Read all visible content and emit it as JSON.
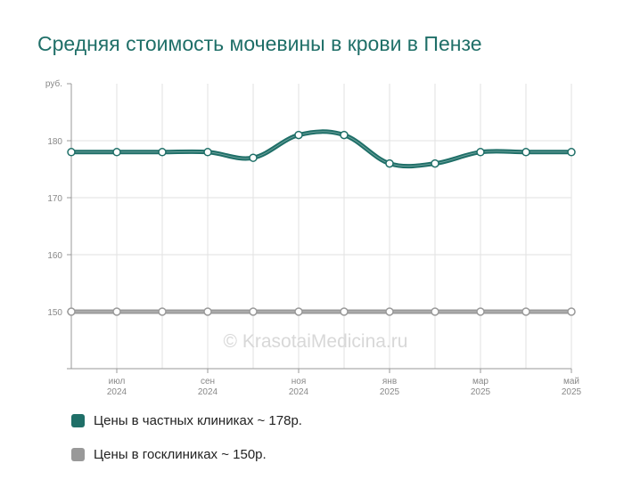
{
  "chart": {
    "title": "Средняя стоимость мочевины в крови в Пензе"
  },
  "chart_data": {
    "type": "line",
    "title": "Средняя стоимость мочевины в крови в Пензе",
    "ylabel": "руб.",
    "ylim": [
      140,
      190
    ],
    "yticks": [
      150,
      160,
      170,
      180
    ],
    "grid": true,
    "x_tick_labels": [
      {
        "month": "июл",
        "year": "2024",
        "index": 1
      },
      {
        "month": "сен",
        "year": "2024",
        "index": 3
      },
      {
        "month": "ноя",
        "year": "2024",
        "index": 5
      },
      {
        "month": "янв",
        "year": "2025",
        "index": 7
      },
      {
        "month": "мар",
        "year": "2025",
        "index": 9
      },
      {
        "month": "май",
        "year": "2025",
        "index": 11
      }
    ],
    "x": [
      "2024-06",
      "2024-07",
      "2024-08",
      "2024-09",
      "2024-10",
      "2024-11",
      "2024-12",
      "2025-01",
      "2025-02",
      "2025-03",
      "2025-04",
      "2025-05"
    ],
    "series": [
      {
        "name": "Цены в частных клиниках ~ 178р.",
        "color": "#1f6f68",
        "values": [
          178,
          178,
          178,
          178,
          177,
          181,
          181,
          176,
          176,
          178,
          178,
          178
        ]
      },
      {
        "name": "Цены в госклиниках ~ 150р.",
        "color": "#999999",
        "values": [
          150,
          150,
          150,
          150,
          150,
          150,
          150,
          150,
          150,
          150,
          150,
          150
        ]
      }
    ],
    "legend": "bottom-left",
    "watermark": "© KrasotaiMedicina.ru"
  }
}
